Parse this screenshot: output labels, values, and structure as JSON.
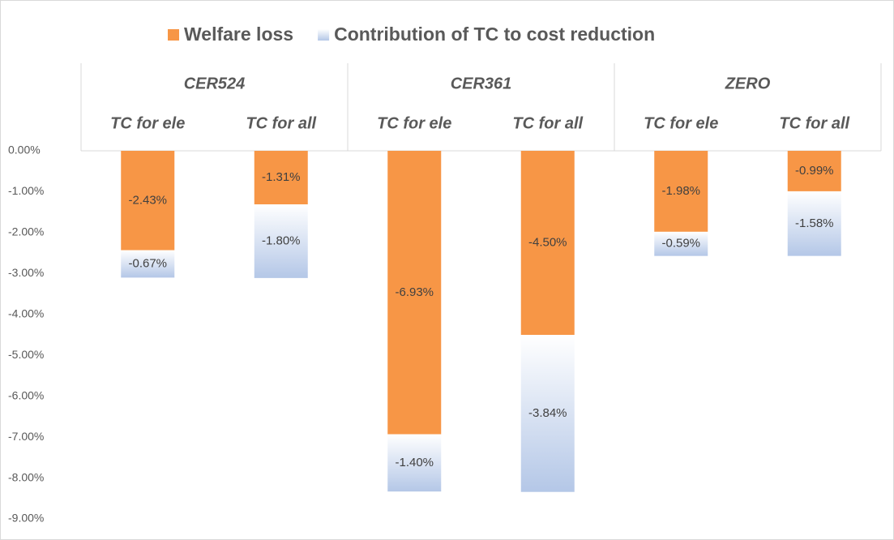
{
  "chart_data": {
    "type": "stacked-bar",
    "groups": [
      "CER524",
      "CER361",
      "ZERO"
    ],
    "categories": [
      "TC for ele",
      "TC for all",
      "TC for ele",
      "TC for all",
      "TC for ele",
      "TC for all"
    ],
    "series": [
      {
        "name": "Welfare loss",
        "color": "#f79646",
        "values": [
          -2.43,
          -1.31,
          -6.93,
          -4.5,
          -1.98,
          -0.99
        ],
        "value_labels": [
          "-2.43%",
          "-1.31%",
          "-6.93%",
          "-4.50%",
          "-1.98%",
          "-0.99%"
        ]
      },
      {
        "name": "Contribution of TC to cost reduction",
        "color": "#b4c7e7",
        "values": [
          -0.67,
          -1.8,
          -1.4,
          -3.84,
          -0.59,
          -1.58
        ],
        "value_labels": [
          "-0.67%",
          "-1.80%",
          "-1.40%",
          "-3.84%",
          "-0.59%",
          "-1.58%"
        ]
      }
    ],
    "ylim": [
      -9,
      0
    ],
    "yticks": [
      {
        "value": 0,
        "label": "0.00%"
      },
      {
        "value": -1,
        "label": "-1.00%"
      },
      {
        "value": -2,
        "label": "-2.00%"
      },
      {
        "value": -3,
        "label": "-3.00%"
      },
      {
        "value": -4,
        "label": "-4.00%"
      },
      {
        "value": -5,
        "label": "-5.00%"
      },
      {
        "value": -6,
        "label": "-6.00%"
      },
      {
        "value": -7,
        "label": "-7.00%"
      },
      {
        "value": -8,
        "label": "-8.00%"
      },
      {
        "value": -9,
        "label": "-9.00%"
      }
    ],
    "legend": "top"
  }
}
